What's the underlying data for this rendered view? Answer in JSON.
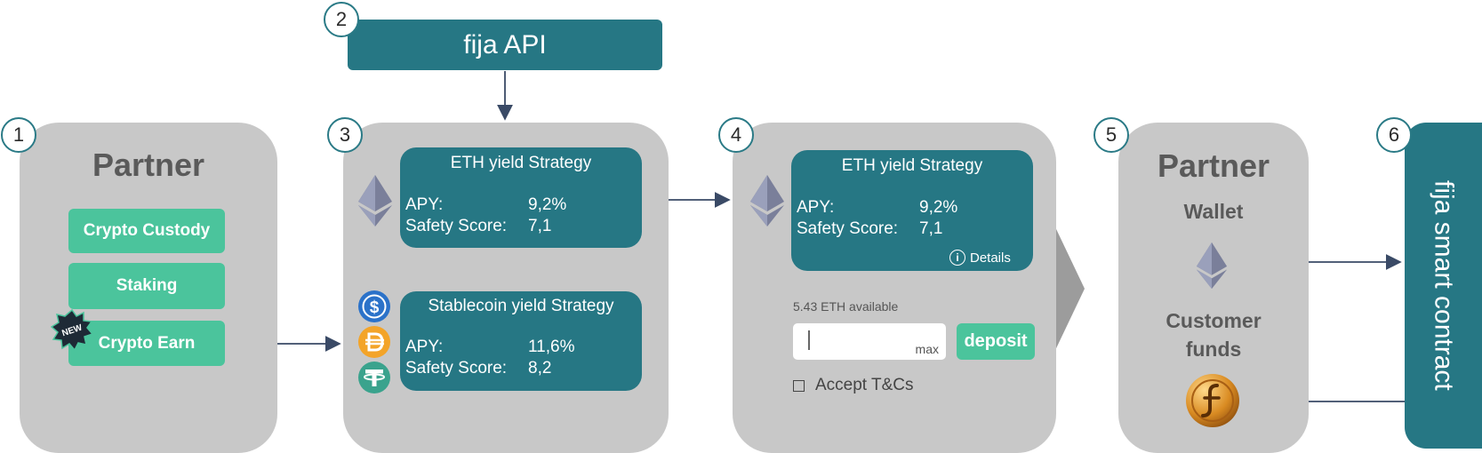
{
  "steps": [
    "1",
    "2",
    "3",
    "4",
    "5",
    "6"
  ],
  "api": {
    "label": "fija API"
  },
  "partner_left": {
    "title": "Partner",
    "buttons": [
      "Crypto Custody",
      "Staking",
      "Crypto Earn"
    ],
    "badge": "NEW"
  },
  "strategies": {
    "eth": {
      "title": "ETH yield Strategy",
      "apy_label": "APY:",
      "apy_value": "9,2%",
      "safety_label": "Safety Score:",
      "safety_value": "7,1"
    },
    "stable": {
      "title": "Stablecoin yield Strategy",
      "apy_label": "APY:",
      "apy_value": "11,6%",
      "safety_label": "Safety Score:",
      "safety_value": "8,2"
    }
  },
  "deposit": {
    "title": "ETH yield Strategy",
    "apy_label": "APY:",
    "apy_value": "9,2%",
    "safety_label": "Safety Score:",
    "safety_value": "7,1",
    "details": "Details",
    "available": "5.43 ETH available",
    "max": "max",
    "deposit_button": "deposit",
    "terms": "Accept T&Cs"
  },
  "partner_right": {
    "title": "Partner",
    "wallet": "Wallet",
    "funds_line1": "Customer",
    "funds_line2": "funds"
  },
  "contract": {
    "label": "fija smart contract"
  },
  "icons": [
    "ethereum-icon",
    "usdc-icon",
    "dai-icon",
    "tether-icon",
    "fija-coin-icon",
    "info-icon",
    "new-badge-icon"
  ],
  "colors": {
    "teal": "#267784",
    "green": "#4bc49c",
    "panel": "#c8c8c8",
    "arrow": "#3a4a66"
  }
}
